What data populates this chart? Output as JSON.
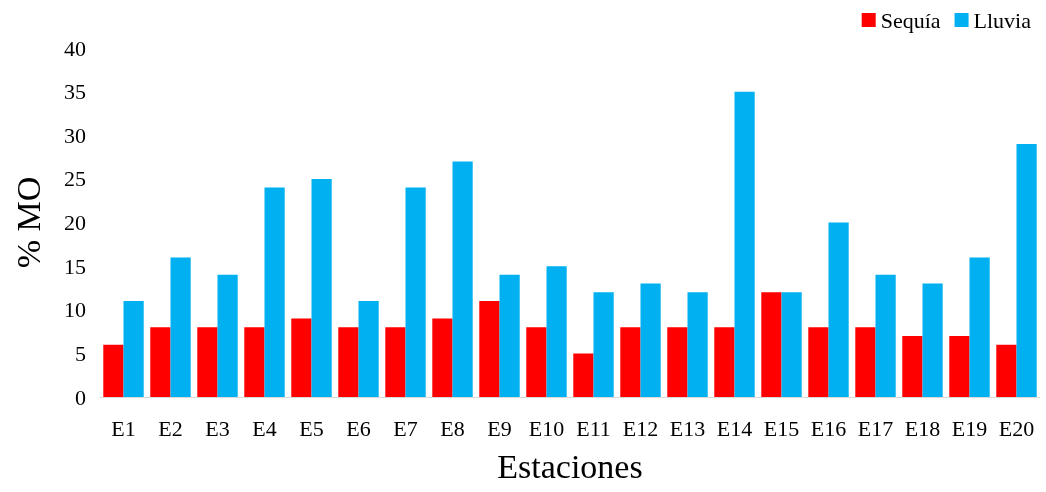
{
  "chart_data": {
    "type": "bar",
    "xlabel": "Estaciones",
    "ylabel": "% MO",
    "categories": [
      "E1",
      "E2",
      "E3",
      "E4",
      "E5",
      "E6",
      "E7",
      "E8",
      "E9",
      "E10",
      "E11",
      "E12",
      "E13",
      "E14",
      "E15",
      "E16",
      "E17",
      "E18",
      "E19",
      "E20"
    ],
    "series": [
      {
        "name": "Sequía",
        "color": "#ff0000",
        "values": [
          6,
          8,
          8,
          8,
          9,
          8,
          8,
          9,
          11,
          8,
          5,
          8,
          8,
          8,
          12,
          8,
          8,
          7,
          7,
          6
        ]
      },
      {
        "name": "Lluvia",
        "color": "#00b0f0",
        "values": [
          11,
          16,
          14,
          24,
          25,
          11,
          24,
          27,
          14,
          15,
          12,
          13,
          12,
          35,
          12,
          20,
          14,
          13,
          16,
          29
        ]
      }
    ],
    "ylim": [
      0,
      40
    ],
    "yticks": [
      0,
      5,
      10,
      15,
      20,
      25,
      30,
      35,
      40
    ],
    "grid": false,
    "legend": "top right"
  }
}
